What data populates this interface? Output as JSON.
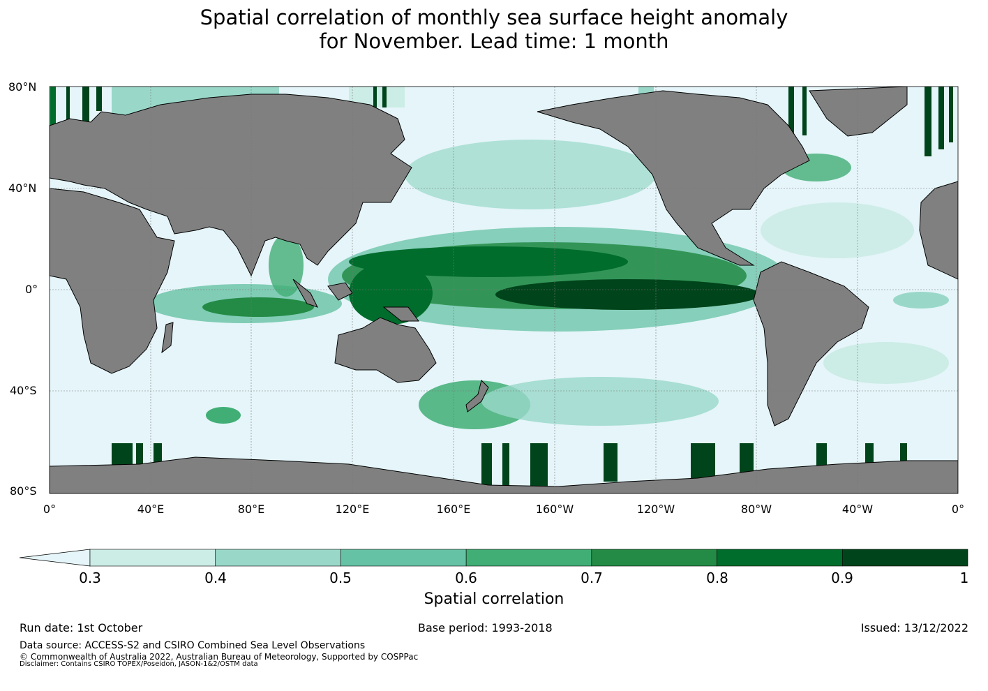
{
  "title": {
    "line1": "Spatial correlation of monthly sea surface height anomaly",
    "line2": "for November. Lead time: 1 month"
  },
  "map": {
    "lat_labels": [
      "80°N",
      "40°N",
      "0°",
      "40°S",
      "80°S"
    ],
    "lon_labels": [
      "0°",
      "40°E",
      "80°E",
      "120°E",
      "160°E",
      "160°W",
      "120°W",
      "80°W",
      "40°W",
      "0°"
    ],
    "ocean_color": "#e5f5f9",
    "land_color": "#808080"
  },
  "colorbar": {
    "label": "Spatial correlation",
    "ticks": [
      "0.3",
      "0.4",
      "0.5",
      "0.6",
      "0.7",
      "0.8",
      "0.9",
      "1"
    ],
    "bins": [
      {
        "from": 0.3,
        "to": 0.4,
        "color": "#ccece6"
      },
      {
        "from": 0.4,
        "to": 0.5,
        "color": "#99d8c9"
      },
      {
        "from": 0.5,
        "to": 0.6,
        "color": "#66c2a4"
      },
      {
        "from": 0.6,
        "to": 0.7,
        "color": "#41ae76"
      },
      {
        "from": 0.7,
        "to": 0.8,
        "color": "#238b45"
      },
      {
        "from": 0.8,
        "to": 0.9,
        "color": "#006d2c"
      },
      {
        "from": 0.9,
        "to": 1.0,
        "color": "#00441b"
      }
    ],
    "under_color": "#e5f5f9"
  },
  "footer": {
    "run_date": "Run date: 1st October",
    "base_period": "Base period: 1993-2018",
    "issued": "Issued: 13/12/2022",
    "data_source": "Data source: ACCESS-S2 and CSIRO Combined Sea Level Observations",
    "copyright": "© Commonwealth of Australia 2022, Australian Bureau of Meteorology, Supported by COSPPac",
    "disclaimer": "Disclaimer: Contains CSIRO TOPEX/Poseidon, JASON-1&2/OSTM data"
  }
}
